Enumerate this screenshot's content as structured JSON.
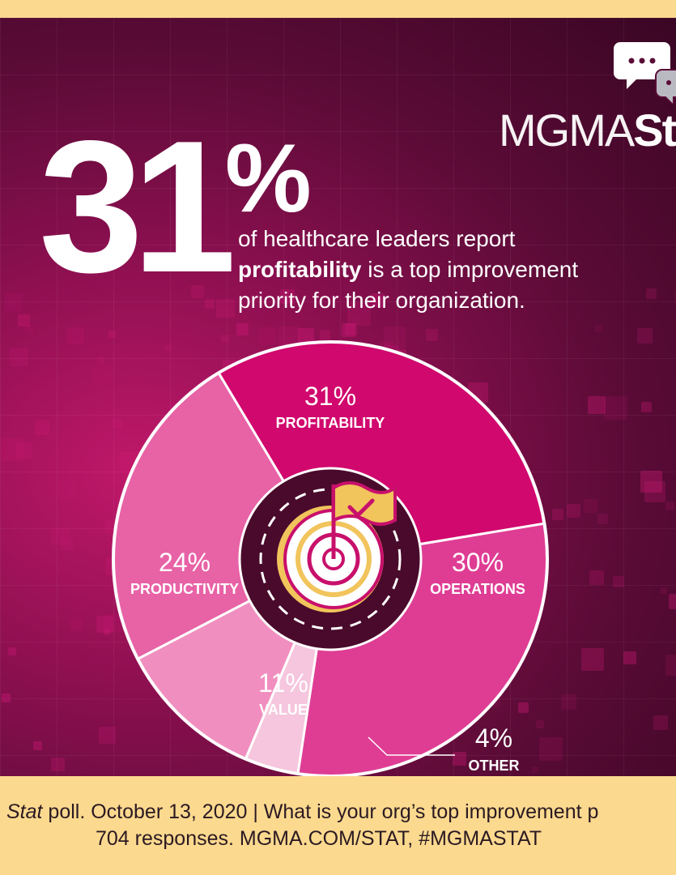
{
  "headline": {
    "big_number": "31",
    "big_percent": "%",
    "line1": "of healthcare leaders report",
    "line2_bold": "profitability",
    "line2_rest": " is a top improvement",
    "line3": "priority for their organization."
  },
  "logo": {
    "thin": "MGMA",
    "bold": "Sta"
  },
  "chart_data": {
    "type": "pie",
    "slices": [
      {
        "label": "PROFITABILITY",
        "value": 31,
        "value_label": "31%",
        "color": "#d1086d"
      },
      {
        "label": "OPERATIONS",
        "value": 30,
        "value_label": "30%",
        "color": "#df3d94"
      },
      {
        "label": "OTHER",
        "value": 4,
        "value_label": "4%",
        "color": "#f5c6dd"
      },
      {
        "label": "VALUE",
        "value": 11,
        "value_label": "11%",
        "color": "#f08fbf"
      },
      {
        "label": "PRODUCTIVITY",
        "value": 24,
        "value_label": "24%",
        "color": "#e862a6"
      }
    ],
    "center_icon": "target-flag-icon"
  },
  "colors": {
    "footer_bg": "#fbd98f",
    "panel_dark": "#5a0b36",
    "accent": "#d1086d",
    "icon_gold": "#f1c45c"
  },
  "footer": {
    "line1_italic": "Stat",
    "line1_rest": " poll. October 13, 2020  |  What is your org’s top improvement p",
    "line2": "704 responses. MGMA.COM/STAT, #MGMASTAT"
  }
}
